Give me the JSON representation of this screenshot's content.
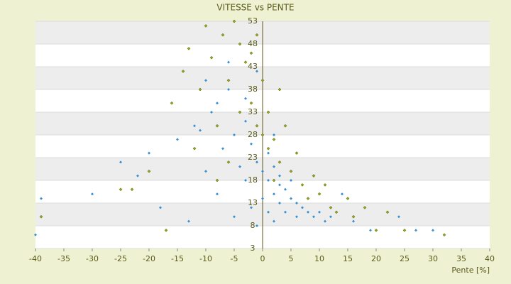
{
  "chart_data": {
    "type": "scatter",
    "title": "VITESSE vs PENTE",
    "x_label": "Pente [%]",
    "xlim": [
      -40,
      40
    ],
    "xticks": [
      -40,
      -35,
      -30,
      -25,
      -20,
      -15,
      -10,
      -5,
      0,
      5,
      10,
      15,
      20,
      25,
      30,
      35,
      40
    ],
    "ylim": [
      3,
      53
    ],
    "yticks": [
      3,
      8,
      13,
      18,
      23,
      28,
      33,
      38,
      43,
      48,
      53
    ],
    "grid": true,
    "series": [
      {
        "color": "#3a8fd0",
        "x": [
          -40,
          -39,
          -30,
          -25,
          -22,
          -20,
          -18,
          -15,
          -13,
          -12,
          -10,
          -10,
          -9,
          -8,
          -7,
          -6,
          -5,
          -5,
          -4,
          -3,
          -3,
          -2,
          -2,
          -1,
          -1,
          0,
          0,
          1,
          1,
          1,
          2,
          2,
          2,
          3,
          3,
          3,
          4,
          4,
          5,
          5,
          6,
          6,
          7,
          8,
          9,
          10,
          11,
          12,
          14,
          16,
          19,
          24,
          27,
          30,
          -6,
          -8,
          -3,
          -11,
          -1,
          2
        ],
        "values": [
          6,
          14,
          15,
          22,
          19,
          24,
          12,
          27,
          9,
          30,
          40,
          20,
          33,
          15,
          25,
          38,
          28,
          10,
          21,
          31,
          18,
          26,
          12,
          22,
          8,
          20,
          14,
          24,
          18,
          11,
          21,
          15,
          9,
          19,
          13,
          17,
          16,
          11,
          18,
          14,
          13,
          10,
          12,
          11,
          10,
          11,
          9,
          10,
          15,
          9,
          7,
          10,
          7,
          7,
          44,
          35,
          36,
          29,
          42,
          28
        ]
      },
      {
        "color": "#9aa814",
        "x": [
          -39,
          -25,
          -23,
          -20,
          -17,
          -16,
          -14,
          -13,
          -12,
          -11,
          -10,
          -9,
          -8,
          -7,
          -6,
          -5,
          -4,
          -3,
          -2,
          -1,
          -1,
          0,
          1,
          1,
          2,
          3,
          3,
          4,
          5,
          6,
          7,
          8,
          9,
          10,
          11,
          12,
          13,
          15,
          16,
          18,
          20,
          22,
          25,
          32,
          -2,
          -4,
          0,
          2,
          -6,
          -8
        ],
        "values": [
          10,
          16,
          16,
          20,
          7,
          35,
          42,
          47,
          25,
          38,
          52,
          45,
          30,
          50,
          40,
          53,
          48,
          44,
          35,
          50,
          30,
          40,
          33,
          25,
          27,
          38,
          22,
          30,
          20,
          24,
          17,
          14,
          19,
          15,
          17,
          12,
          11,
          14,
          10,
          12,
          7,
          11,
          7,
          6,
          46,
          33,
          28,
          18,
          22,
          18
        ]
      }
    ]
  }
}
